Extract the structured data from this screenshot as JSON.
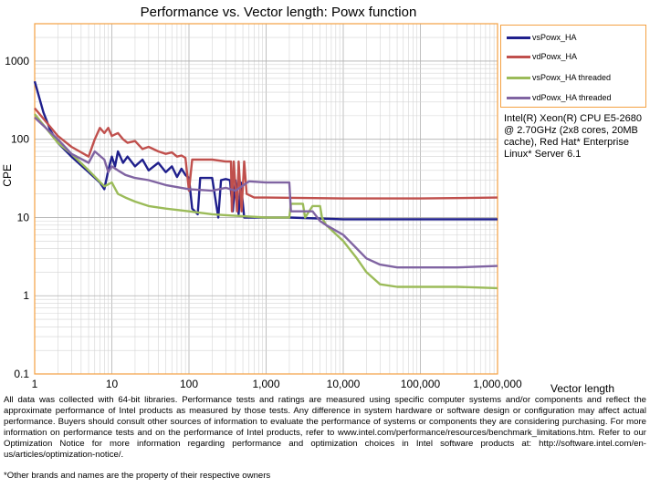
{
  "chart_data": {
    "type": "line",
    "title": "Performance vs. Vector length: Powx function",
    "xlabel": "Vector length",
    "ylabel": "CPE",
    "x_scale": "log",
    "y_scale": "log",
    "xlim": [
      1,
      1000000
    ],
    "ylim": [
      0.1,
      3000
    ],
    "grid": true,
    "legend_position": "top-right",
    "x_tick_labels": [
      "1",
      "10",
      "100",
      "1,000",
      "10,000",
      "100,000",
      "1,000,000"
    ],
    "y_tick_labels": [
      "0.1",
      "1",
      "10",
      "100",
      "1000"
    ],
    "series": [
      {
        "name": "vsPowx_HA",
        "color": "#1f1f8c",
        "points": [
          [
            1,
            550
          ],
          [
            1.3,
            220
          ],
          [
            1.6,
            130
          ],
          [
            2,
            90
          ],
          [
            3,
            60
          ],
          [
            5,
            38
          ],
          [
            7,
            28
          ],
          [
            8,
            23
          ],
          [
            9,
            40
          ],
          [
            10,
            60
          ],
          [
            11,
            45
          ],
          [
            12,
            70
          ],
          [
            14,
            50
          ],
          [
            16,
            60
          ],
          [
            20,
            45
          ],
          [
            25,
            55
          ],
          [
            30,
            40
          ],
          [
            40,
            50
          ],
          [
            50,
            38
          ],
          [
            60,
            45
          ],
          [
            70,
            33
          ],
          [
            80,
            42
          ],
          [
            90,
            35
          ],
          [
            100,
            32
          ],
          [
            110,
            13
          ],
          [
            130,
            11
          ],
          [
            140,
            32
          ],
          [
            200,
            32
          ],
          [
            240,
            10
          ],
          [
            260,
            30
          ],
          [
            300,
            31
          ],
          [
            340,
            30
          ],
          [
            370,
            12
          ],
          [
            400,
            30
          ],
          [
            440,
            11
          ],
          [
            470,
            28
          ],
          [
            520,
            10
          ],
          [
            600,
            10
          ],
          [
            2000,
            10
          ],
          [
            10000,
            9.5
          ],
          [
            100000,
            9.5
          ],
          [
            1000000,
            9.5
          ]
        ]
      },
      {
        "name": "vdPowx_HA",
        "color": "#c0504d",
        "points": [
          [
            1,
            250
          ],
          [
            2,
            110
          ],
          [
            3,
            80
          ],
          [
            5,
            60
          ],
          [
            6,
            100
          ],
          [
            7,
            140
          ],
          [
            8,
            120
          ],
          [
            9,
            140
          ],
          [
            10,
            110
          ],
          [
            12,
            120
          ],
          [
            14,
            100
          ],
          [
            16,
            90
          ],
          [
            20,
            95
          ],
          [
            25,
            75
          ],
          [
            30,
            80
          ],
          [
            40,
            70
          ],
          [
            50,
            65
          ],
          [
            60,
            68
          ],
          [
            70,
            60
          ],
          [
            80,
            62
          ],
          [
            90,
            58
          ],
          [
            100,
            22
          ],
          [
            110,
            55
          ],
          [
            200,
            55
          ],
          [
            300,
            52
          ],
          [
            350,
            52
          ],
          [
            360,
            12
          ],
          [
            380,
            52
          ],
          [
            420,
            12
          ],
          [
            440,
            52
          ],
          [
            480,
            12
          ],
          [
            520,
            52
          ],
          [
            560,
            20
          ],
          [
            700,
            18
          ],
          [
            1000,
            18
          ],
          [
            10000,
            17.5
          ],
          [
            100000,
            17.5
          ],
          [
            1000000,
            18
          ]
        ]
      },
      {
        "name": "vsPowx_HA threaded",
        "color": "#9bbb59",
        "points": [
          [
            1,
            210
          ],
          [
            2,
            90
          ],
          [
            3,
            65
          ],
          [
            5,
            40
          ],
          [
            8,
            25
          ],
          [
            10,
            28
          ],
          [
            12,
            20
          ],
          [
            15,
            18
          ],
          [
            20,
            16
          ],
          [
            30,
            14
          ],
          [
            50,
            13
          ],
          [
            100,
            12
          ],
          [
            200,
            11
          ],
          [
            400,
            10.5
          ],
          [
            1000,
            10
          ],
          [
            2000,
            10
          ],
          [
            2100,
            15
          ],
          [
            3000,
            15
          ],
          [
            3200,
            10
          ],
          [
            4000,
            14
          ],
          [
            5000,
            14
          ],
          [
            5300,
            10
          ],
          [
            6000,
            8
          ],
          [
            10000,
            5
          ],
          [
            15000,
            3
          ],
          [
            20000,
            2
          ],
          [
            30000,
            1.4
          ],
          [
            50000,
            1.3
          ],
          [
            100000,
            1.3
          ],
          [
            300000,
            1.3
          ],
          [
            1000000,
            1.25
          ]
        ]
      },
      {
        "name": "vdPowx_HA threaded",
        "color": "#8064a2",
        "points": [
          [
            1,
            190
          ],
          [
            2,
            100
          ],
          [
            3,
            65
          ],
          [
            5,
            50
          ],
          [
            6,
            70
          ],
          [
            8,
            55
          ],
          [
            9,
            38
          ],
          [
            10,
            45
          ],
          [
            12,
            40
          ],
          [
            15,
            35
          ],
          [
            20,
            32
          ],
          [
            30,
            30
          ],
          [
            50,
            26
          ],
          [
            100,
            23
          ],
          [
            200,
            22
          ],
          [
            300,
            24
          ],
          [
            400,
            22
          ],
          [
            600,
            29
          ],
          [
            1000,
            28
          ],
          [
            2000,
            28
          ],
          [
            2100,
            12
          ],
          [
            4000,
            12
          ],
          [
            5000,
            9
          ],
          [
            6000,
            8
          ],
          [
            10000,
            6
          ],
          [
            15000,
            4
          ],
          [
            20000,
            3
          ],
          [
            30000,
            2.5
          ],
          [
            50000,
            2.3
          ],
          [
            100000,
            2.3
          ],
          [
            300000,
            2.3
          ],
          [
            1000000,
            2.4
          ]
        ]
      }
    ]
  },
  "cpu_note": "Intel(R) Xeon(R) CPU E5-2680 @ 2.70GHz (2x8 cores, 20MB cache), Red Hat* Enterprise Linux* Server 6.1",
  "disclaimer": "All data was collected with 64-bit libraries. Performance tests and ratings are measured using specific computer systems and/or components and reflect the approximate performance of Intel products as measured by those tests. Any difference in system hardware or software design or configuration may affect actual performance. Buyers should consult other sources of information to evaluate the performance of systems or components they are considering purchasing. For more information on performance tests and on the performance of Intel products, refer to www.intel.com/performance/resources/benchmark_limitations.htm. Refer to our Optimization Notice for more information regarding performance and optimization choices in Intel software products at: http://software.intel.com/en-us/articles/optimization-notice/.",
  "footnote": "*Other brands and names are the property of their respective owners"
}
